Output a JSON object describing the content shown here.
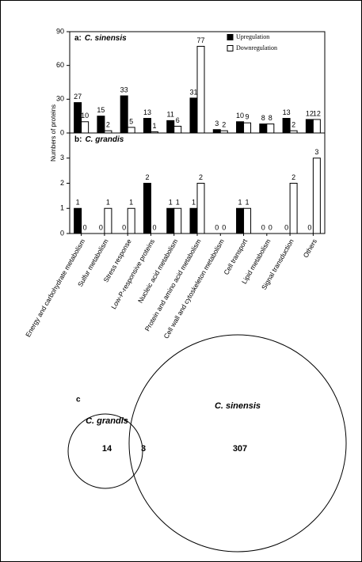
{
  "chart_data": [
    {
      "type": "bar",
      "label": "a:",
      "title": "C. sinensis",
      "ylabel": "Numbers of proteins",
      "series": [
        {
          "name": "Upregulation",
          "color": "#000000",
          "values": [
            27,
            15,
            33,
            13,
            11,
            31,
            3,
            10,
            8,
            13,
            12
          ]
        },
        {
          "name": "Downregulation",
          "color": "#ffffff",
          "values": [
            10,
            2,
            5,
            1,
            6,
            77,
            2,
            9,
            8,
            2,
            12
          ]
        }
      ],
      "ylim": [
        0,
        90
      ],
      "yticks": [
        0,
        30,
        60,
        90
      ],
      "legend": "upper right"
    },
    {
      "type": "bar",
      "label": "b:",
      "title": "C. grandis",
      "categories": [
        "Energy and carbohydrate metabolism",
        "Sulfur metabolism",
        "Stress response",
        "Low-P-responsive proteins",
        "Nucleic acid metabolism",
        "Protein and amino acid metabolism",
        "Cell wall and cytoskeleton metabolism",
        "Cell transport",
        "Lipid metabolism",
        "Signal transduction",
        "Others"
      ],
      "series": [
        {
          "name": "Upregulation",
          "color": "#000000",
          "values": [
            1,
            0,
            0,
            2,
            1,
            1,
            0,
            1,
            0,
            0,
            0
          ]
        },
        {
          "name": "Downregulation",
          "color": "#ffffff",
          "values": [
            0,
            1,
            1,
            0,
            1,
            2,
            0,
            1,
            0,
            2,
            3
          ]
        }
      ],
      "ylim": [
        0,
        4
      ],
      "yticks": [
        0,
        1,
        2,
        3
      ]
    }
  ],
  "venn": {
    "label": "c",
    "sets": [
      {
        "name": "C. grandis",
        "count": 14
      },
      {
        "name": "C. sinensis",
        "count": 307
      }
    ],
    "intersection": 3
  }
}
